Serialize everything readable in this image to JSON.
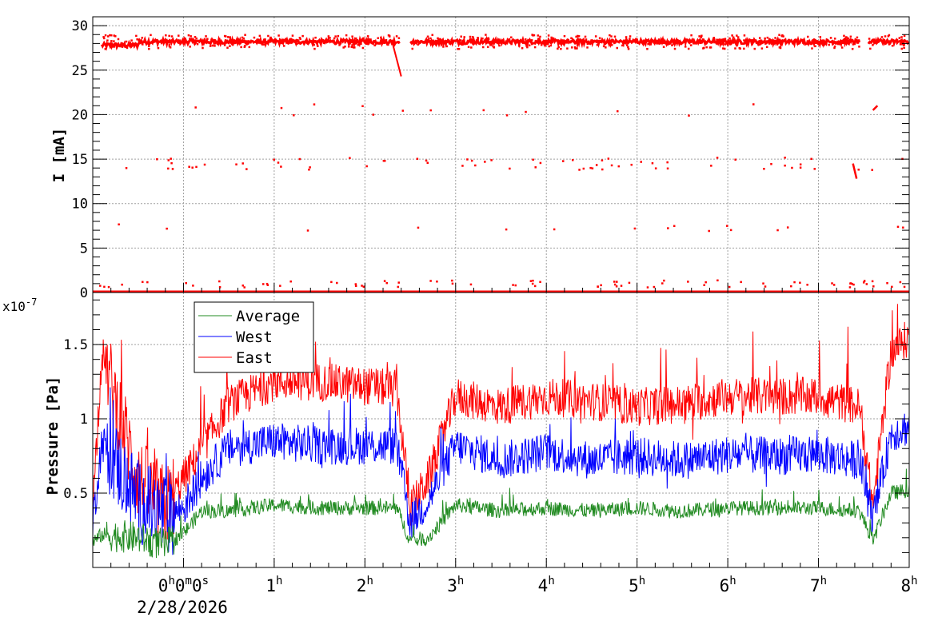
{
  "colors": {
    "average": "#228b22",
    "west": "#0000ff",
    "east": "#ff0000",
    "grid": "#a0a0a0",
    "frame": "#000000"
  },
  "chart_data": [
    {
      "type": "scatter",
      "ylabel": "I [mA]",
      "ylim": [
        0,
        31
      ],
      "y_ticks": [
        0,
        5,
        10,
        15,
        20,
        25,
        30
      ],
      "y_tick_labels": [
        "0",
        "5",
        "10",
        "15",
        "20",
        "25",
        "30"
      ],
      "xlim": [
        -1.0,
        8.0
      ],
      "x_axis": "hours since 0h (2/28/2026)",
      "grid": true,
      "series": [
        {
          "color": "#ff0000",
          "main_level_mA": 28.2,
          "main_segments": [
            [
              -0.9,
              2.38
            ],
            [
              2.5,
              7.45
            ],
            [
              7.55,
              8.0
            ]
          ],
          "decay_to": {
            "x": 2.4,
            "y": 24.3
          },
          "secondary_levels_mA": [
            20.5,
            14.5,
            7.3,
            1.0,
            0.0
          ]
        }
      ]
    },
    {
      "type": "line",
      "ylabel": "Pressure [Pa]",
      "y_multiplier": "x10-7",
      "ylim": [
        0.0,
        1.85
      ],
      "y_ticks": [
        0.5,
        1.0,
        1.5
      ],
      "y_tick_labels": [
        "0.5",
        "1",
        "1.5"
      ],
      "xlim": [
        -1.0,
        8.0
      ],
      "grid": true,
      "legend": "top-left",
      "series": [
        {
          "name": "Average",
          "color": "#228b22",
          "x": [
            -1.0,
            -0.9,
            -0.5,
            -0.2,
            0.0,
            0.2,
            0.5,
            1.0,
            1.5,
            2.0,
            2.35,
            2.5,
            2.7,
            3.0,
            3.5,
            4.0,
            4.5,
            5.0,
            5.5,
            6.0,
            6.5,
            7.0,
            7.45,
            7.6,
            7.8,
            8.0
          ],
          "y": [
            0.17,
            0.22,
            0.2,
            0.15,
            0.23,
            0.38,
            0.38,
            0.42,
            0.4,
            0.4,
            0.4,
            0.18,
            0.2,
            0.42,
            0.38,
            0.4,
            0.38,
            0.4,
            0.38,
            0.4,
            0.4,
            0.4,
            0.38,
            0.18,
            0.5,
            0.52
          ]
        },
        {
          "name": "West",
          "color": "#0000ff",
          "x": [
            -1.0,
            -0.9,
            -0.5,
            -0.2,
            0.0,
            0.2,
            0.5,
            1.0,
            1.5,
            2.0,
            2.35,
            2.5,
            2.7,
            3.0,
            3.5,
            4.0,
            4.5,
            5.0,
            5.5,
            6.0,
            6.5,
            7.0,
            7.45,
            7.6,
            7.8,
            8.0
          ],
          "y": [
            0.3,
            0.85,
            0.45,
            0.35,
            0.4,
            0.6,
            0.8,
            0.85,
            0.82,
            0.82,
            0.82,
            0.3,
            0.45,
            0.82,
            0.72,
            0.78,
            0.72,
            0.75,
            0.72,
            0.76,
            0.75,
            0.76,
            0.72,
            0.32,
            0.9,
            0.95
          ]
        },
        {
          "name": "East",
          "color": "#ff0000",
          "x": [
            -1.0,
            -0.9,
            -0.5,
            -0.2,
            0.0,
            0.2,
            0.5,
            1.0,
            1.5,
            2.0,
            2.35,
            2.5,
            2.7,
            3.0,
            3.5,
            4.0,
            4.5,
            5.0,
            5.5,
            6.0,
            6.5,
            7.0,
            7.45,
            7.6,
            7.8,
            8.0
          ],
          "y": [
            0.4,
            1.45,
            0.6,
            0.4,
            0.6,
            0.8,
            1.1,
            1.25,
            1.25,
            1.22,
            1.2,
            0.4,
            0.6,
            1.15,
            1.08,
            1.15,
            1.12,
            1.08,
            1.1,
            1.15,
            1.15,
            1.15,
            1.08,
            0.42,
            1.45,
            1.55
          ]
        }
      ]
    }
  ],
  "x_axis": {
    "tick_labels": [
      {
        "x": 0,
        "main": "0",
        "parts": [
          [
            "h",
            "0"
          ],
          [
            "m",
            "0"
          ],
          [
            "s",
            ""
          ]
        ]
      },
      {
        "x": 1,
        "main": "1",
        "parts": [
          [
            "h",
            ""
          ]
        ]
      },
      {
        "x": 2,
        "main": "2",
        "parts": [
          [
            "h",
            ""
          ]
        ]
      },
      {
        "x": 3,
        "main": "3",
        "parts": [
          [
            "h",
            ""
          ]
        ]
      },
      {
        "x": 4,
        "main": "4",
        "parts": [
          [
            "h",
            ""
          ]
        ]
      },
      {
        "x": 5,
        "main": "5",
        "parts": [
          [
            "h",
            ""
          ]
        ]
      },
      {
        "x": 6,
        "main": "6",
        "parts": [
          [
            "h",
            ""
          ]
        ]
      },
      {
        "x": 7,
        "main": "7",
        "parts": [
          [
            "h",
            ""
          ]
        ]
      },
      {
        "x": 8,
        "main": "8",
        "parts": [
          [
            "h",
            ""
          ]
        ]
      }
    ],
    "date_label": "2/28/2026"
  }
}
